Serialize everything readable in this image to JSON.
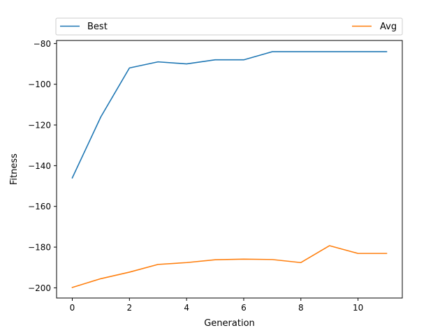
{
  "chart_data": {
    "type": "line",
    "title": "",
    "xlabel": "Generation",
    "ylabel": "Fitness",
    "x": [
      0,
      1,
      2,
      3,
      4,
      5,
      6,
      7,
      8,
      9,
      10,
      11
    ],
    "xlim": [
      -0.55,
      11.55
    ],
    "ylim": [
      -205,
      -78.5
    ],
    "xticks": [
      0,
      2,
      4,
      6,
      8,
      10
    ],
    "yticks": [
      -200,
      -180,
      -160,
      -140,
      -120,
      -100,
      -80
    ],
    "xtick_labels": [
      "0",
      "2",
      "4",
      "6",
      "8",
      "10"
    ],
    "ytick_labels": [
      "−200",
      "−180",
      "−160",
      "−140",
      "−120",
      "−100",
      "−80"
    ],
    "grid": false,
    "legend_position": "top, spanning full width",
    "series": [
      {
        "name": "Best",
        "color": "#1f77b4",
        "values": [
          -146,
          -116,
          -92,
          -89,
          -90,
          -88,
          -88,
          -84,
          -84,
          -84,
          -84,
          -84
        ]
      },
      {
        "name": "Avg",
        "color": "#ff7f0e",
        "values": [
          -199.8,
          -195.5,
          -192.3,
          -188.5,
          -187.6,
          -186.2,
          -185.9,
          -186.1,
          -187.6,
          -179.3,
          -183.1,
          -183.1
        ]
      }
    ]
  }
}
